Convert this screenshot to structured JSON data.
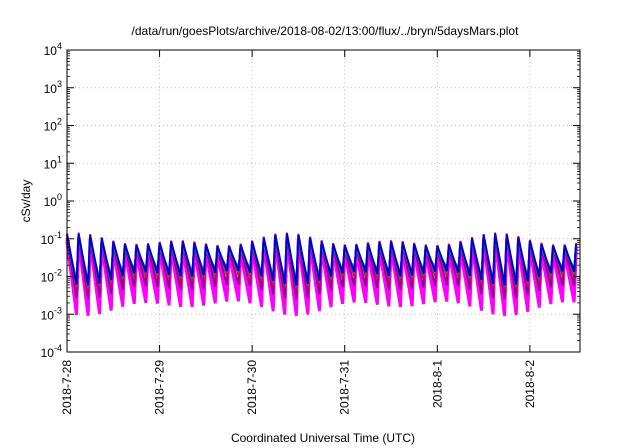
{
  "chart_data": {
    "type": "line",
    "title": "/data/run/goesPlots/archive/2018-08-02/13:00/flux/../bryn/5daysMars.plot",
    "xlabel": "Coordinated Universal Time (UTC)",
    "ylabel": "cSv/day",
    "x_axis": {
      "kind": "date",
      "range": [
        "2018-07-28T00:00",
        "2018-08-02T13:00"
      ],
      "tick_labels": [
        "2018-7-28",
        "2018-7-29",
        "2018-7-30",
        "2018-7-31",
        "2018-8-1",
        "2018-8-2"
      ]
    },
    "y_axis": {
      "scale": "log",
      "range": [
        0.0001,
        10000
      ],
      "tick_labels": [
        {
          "base": "10",
          "exp": "-4",
          "value": 0.0001
        },
        {
          "base": "10",
          "exp": "-3",
          "value": 0.001
        },
        {
          "base": "10",
          "exp": "-2",
          "value": 0.01
        },
        {
          "base": "10",
          "exp": "-1",
          "value": 0.1
        },
        {
          "base": "10",
          "exp": "0",
          "value": 1
        },
        {
          "base": "10",
          "exp": "1",
          "value": 10
        },
        {
          "base": "10",
          "exp": "2",
          "value": 100
        },
        {
          "base": "10",
          "exp": "3",
          "value": 1000
        },
        {
          "base": "10",
          "exp": "4",
          "value": 10000
        }
      ]
    },
    "grid": true,
    "legend": "none",
    "sawtooth": {
      "period_hours": 3,
      "first_peak": "2018-07-28T00:00",
      "peak_range": [
        0.05,
        0.13
      ],
      "trough_range": [
        0.002,
        0.006
      ]
    },
    "series": [
      {
        "color": "#ff00ff",
        "peak_factor": 0.85,
        "trough_factor": 0.7
      },
      {
        "color": "#ff00ff",
        "peak_factor": 0.75,
        "trough_factor": 0.55
      },
      {
        "color": "#ff00ff",
        "peak_factor": 0.65,
        "trough_factor": 0.45
      },
      {
        "color": "#8b008b",
        "peak_factor": 0.9,
        "trough_factor": 1.25
      },
      {
        "color": "#ff0000",
        "peak_factor": 1.12,
        "trough_factor": 2.2
      },
      {
        "color": "#00bfbf",
        "peak_factor": 0.88,
        "trough_factor": 3.2
      },
      {
        "color": "#2e8b57",
        "peak_factor": 0.8,
        "trough_factor": 3.6
      },
      {
        "color": "#1e6fd9",
        "peak_factor": 1.0,
        "trough_factor": 2.6
      },
      {
        "color": "#0000cd",
        "peak_factor": 1.05,
        "trough_factor": 2.9
      }
    ]
  }
}
